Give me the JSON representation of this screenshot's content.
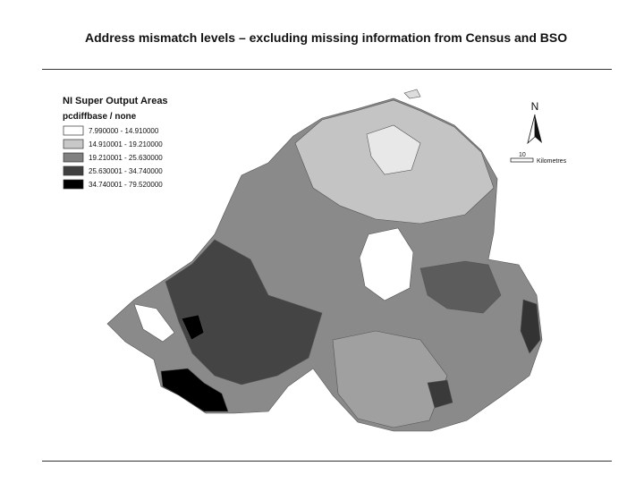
{
  "header": {
    "title": "Address mismatch levels – excluding missing information from Census and BSO"
  },
  "legend": {
    "title": "NI Super Output Areas",
    "field": "pcdiffbase / none",
    "items": [
      {
        "label": "7.990000 - 14.910000",
        "color": "#ffffff"
      },
      {
        "label": "14.910001 - 19.210000",
        "color": "#c8c8c8"
      },
      {
        "label": "19.210001 - 25.630000",
        "color": "#808080"
      },
      {
        "label": "25.630001 - 34.740000",
        "color": "#404040"
      },
      {
        "label": "34.740001 - 79.520000",
        "color": "#000000"
      }
    ]
  },
  "north_arrow": {
    "label": "N"
  },
  "scale_bar": {
    "value": "10",
    "unit": "Kilometres"
  }
}
